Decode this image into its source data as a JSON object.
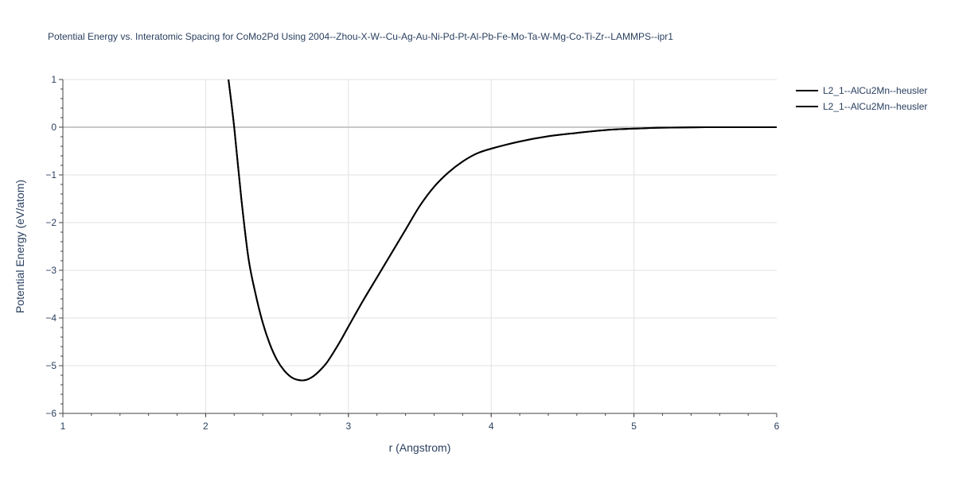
{
  "chart_data": {
    "type": "line",
    "title": "Potential Energy vs. Interatomic Spacing for CoMo2Pd Using 2004--Zhou-X-W--Cu-Ag-Au-Ni-Pd-Pt-Al-Pb-Fe-Mo-Ta-W-Mg-Co-Ti-Zr--LAMMPS--ipr1",
    "xlabel": "r (Angstrom)",
    "ylabel": "Potential Energy (eV/atom)",
    "xlim": [
      1,
      6
    ],
    "ylim": [
      -6,
      1
    ],
    "x_ticks": [
      1,
      2,
      3,
      4,
      5,
      6
    ],
    "y_ticks": [
      1,
      0,
      -1,
      -2,
      -3,
      -4,
      -5,
      -6
    ],
    "grid": true,
    "legend_position": "top-right",
    "line_color": "#000000",
    "series": [
      {
        "name": "L2_1--AlCu2Mn--heusler",
        "x": [
          2.16,
          2.2,
          2.25,
          2.3,
          2.35,
          2.4,
          2.45,
          2.5,
          2.55,
          2.6,
          2.65,
          2.7,
          2.75,
          2.8,
          2.85,
          2.9,
          2.95,
          3.0,
          3.1,
          3.2,
          3.3,
          3.4,
          3.5,
          3.6,
          3.7,
          3.8,
          3.9,
          4.0,
          4.2,
          4.4,
          4.6,
          4.8,
          5.0,
          5.2,
          5.5,
          6.0
        ],
        "y": [
          1.0,
          0.0,
          -1.5,
          -2.75,
          -3.5,
          -4.1,
          -4.55,
          -4.88,
          -5.1,
          -5.24,
          -5.3,
          -5.3,
          -5.23,
          -5.1,
          -4.93,
          -4.7,
          -4.45,
          -4.18,
          -3.65,
          -3.15,
          -2.65,
          -2.15,
          -1.65,
          -1.25,
          -0.95,
          -0.72,
          -0.55,
          -0.45,
          -0.3,
          -0.19,
          -0.12,
          -0.06,
          -0.03,
          -0.01,
          0.0,
          0.0
        ]
      },
      {
        "name": "L2_1--AlCu2Mn--heusler",
        "x": [
          2.16,
          2.2,
          2.25,
          2.3,
          2.35,
          2.4,
          2.45,
          2.5,
          2.55,
          2.6,
          2.65,
          2.7,
          2.75,
          2.8,
          2.85,
          2.9,
          2.95,
          3.0,
          3.1,
          3.2,
          3.3,
          3.4,
          3.5,
          3.6,
          3.7,
          3.8,
          3.9,
          4.0,
          4.2,
          4.4,
          4.6,
          4.8,
          5.0,
          5.2,
          5.5,
          6.0
        ],
        "y": [
          1.0,
          0.0,
          -1.5,
          -2.75,
          -3.5,
          -4.1,
          -4.55,
          -4.88,
          -5.1,
          -5.24,
          -5.3,
          -5.3,
          -5.23,
          -5.1,
          -4.93,
          -4.7,
          -4.45,
          -4.18,
          -3.65,
          -3.15,
          -2.65,
          -2.15,
          -1.65,
          -1.25,
          -0.95,
          -0.72,
          -0.55,
          -0.45,
          -0.3,
          -0.19,
          -0.12,
          -0.06,
          -0.03,
          -0.01,
          0.0,
          0.0
        ]
      }
    ]
  }
}
